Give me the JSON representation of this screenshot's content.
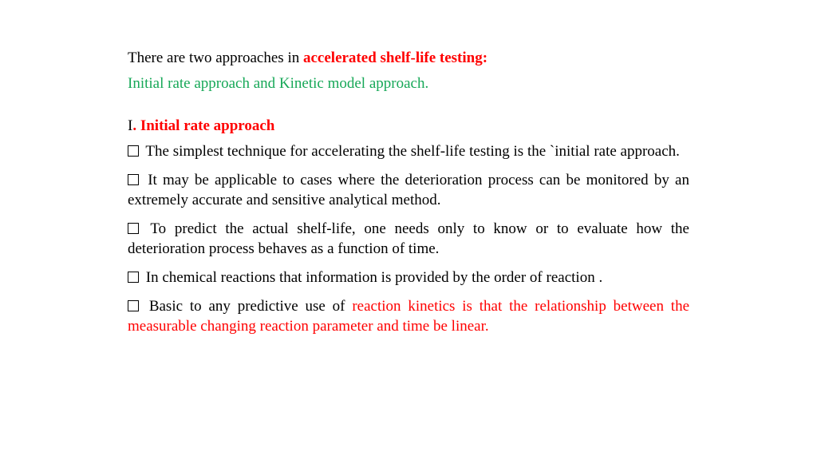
{
  "colors": {
    "black": "#000000",
    "red": "#ff0000",
    "green": "#17a858",
    "background": "#ffffff"
  },
  "typography": {
    "font_family": "Times New Roman",
    "body_size_pt": 14,
    "bold_red": true
  },
  "intro": {
    "prefix": "There are two approaches in ",
    "highlight": "accelerated shelf-life testing:",
    "subline": "Initial rate approach and Kinetic model approach."
  },
  "section": {
    "num": "I",
    "dot": ". ",
    "title": "Initial rate approach"
  },
  "bullets": {
    "b1": "The simplest technique for accelerating the shelf-life testing is the `initial rate approach.",
    "b2": "It may be applicable to cases where the deterioration process can be monitored by an extremely accurate and sensitive analytical method.",
    "b3": "To predict the actual shelf-life, one needs only to know or to evaluate how the deterioration process behaves as a function of time.",
    "b4": "In chemical reactions that information is provided by the order of reaction .",
    "b5_prefix": "Basic to any predictive use of ",
    "b5_red": "reaction kinetics is that the relationship between the measurable changing reaction parameter and time be linear",
    "b5_suffix": "."
  }
}
